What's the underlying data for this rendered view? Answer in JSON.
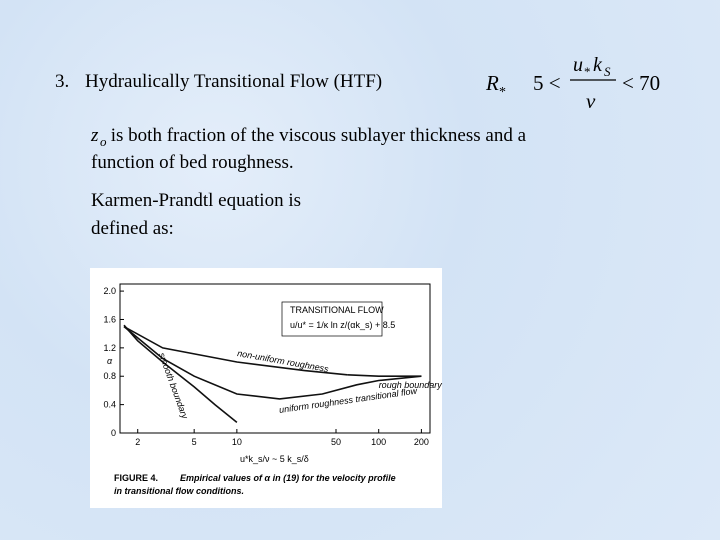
{
  "heading": {
    "number": "3.",
    "title": "Hydraulically Transitional Flow (HTF)"
  },
  "formula": {
    "symbol": "R",
    "symbol_sub": "*",
    "lower": "5 <",
    "num_u": "u",
    "num_u_sub": "*",
    "num_k": "k",
    "num_k_sub": "S",
    "den": "ν",
    "upper": "< 70"
  },
  "paragraphs": [
    {
      "var": "z",
      "var_sub": "o",
      "line1": " is both fraction of the viscous sublayer thickness and a",
      "line2": "function of bed roughness."
    },
    {
      "line1": "Karmen-Prandtl equation is",
      "line2": "defined as:"
    }
  ],
  "figure": {
    "box_title": "TRANSITIONAL FLOW",
    "box_formula": "u/u* = 1/κ ln z/(αk_s) + 8.5",
    "y_label": "α",
    "x_label": "u*k_s/ν ~ 5 k_s/δ",
    "caption_label": "FIGURE 4.",
    "caption_line1": "Empirical values of α in (19) for the velocity profile",
    "caption_line2": "in transitional flow conditions.",
    "chart": {
      "type": "line",
      "log_x": true,
      "xlim": [
        1.5,
        230
      ],
      "ylim": [
        0,
        2.1
      ],
      "xticks": [
        2,
        5,
        10,
        50,
        100,
        200
      ],
      "yticks": [
        0,
        0.4,
        0.8,
        1.2,
        1.6,
        {
          "value": 2,
          "label": "2.0"
        }
      ],
      "series": [
        {
          "name": "smooth boundary",
          "color": "#111",
          "x": [
            1.6,
            2,
            3,
            5,
            7,
            10
          ],
          "values": [
            1.52,
            1.3,
            1.0,
            0.65,
            0.4,
            0.15
          ]
        },
        {
          "name": "non-uniform roughness",
          "color": "#111",
          "x": [
            1.6,
            3,
            10,
            30,
            60
          ],
          "values": [
            1.5,
            1.2,
            1.0,
            0.88,
            0.82
          ]
        },
        {
          "name": "rough boundary",
          "color": "#111",
          "x": [
            60,
            100,
            200
          ],
          "values": [
            0.82,
            0.8,
            0.8
          ]
        },
        {
          "name": "uniform roughness transitional flow",
          "color": "#111",
          "x": [
            1.6,
            3,
            5,
            10,
            20,
            40,
            70,
            100,
            200
          ],
          "values": [
            1.5,
            1.05,
            0.8,
            0.55,
            0.48,
            0.55,
            0.68,
            0.74,
            0.8
          ]
        }
      ]
    }
  }
}
